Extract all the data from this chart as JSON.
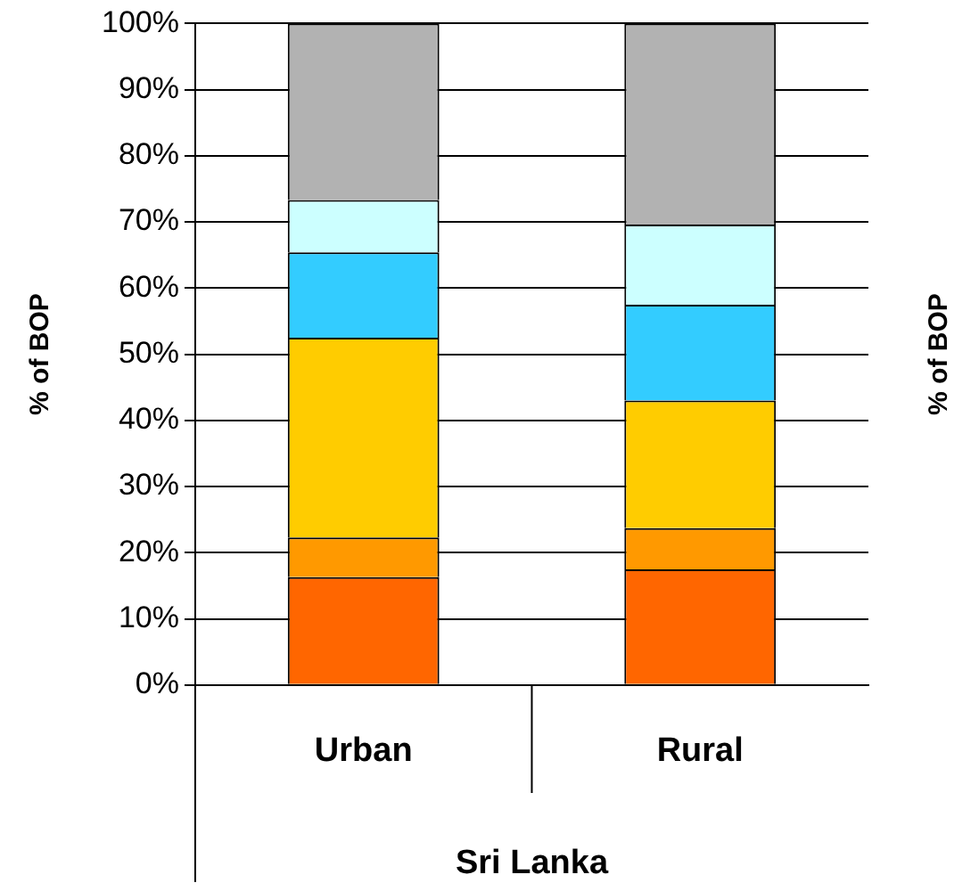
{
  "chart_data": {
    "type": "bar",
    "stacked": true,
    "xlabel": "Sri Lanka",
    "ylabel": "% of BOP",
    "categories": [
      "Urban",
      "Rural"
    ],
    "series": [
      {
        "color": "#ff6600",
        "values": [
          16.3,
          17.5
        ]
      },
      {
        "color": "#ff9900",
        "values": [
          6.0,
          6.2
        ]
      },
      {
        "color": "#ffcc00",
        "values": [
          30.2,
          19.3
        ]
      },
      {
        "color": "#33ccff",
        "values": [
          12.9,
          14.5
        ]
      },
      {
        "color": "#ccffff",
        "values": [
          7.9,
          12.1
        ]
      },
      {
        "color": "#b2b2b2",
        "values": [
          26.7,
          30.4
        ]
      }
    ],
    "ylim": [
      0,
      100
    ],
    "yticks": [
      {
        "value": 0,
        "label": "0%"
      },
      {
        "value": 10,
        "label": "10%"
      },
      {
        "value": 20,
        "label": "20%"
      },
      {
        "value": 30,
        "label": "30%"
      },
      {
        "value": 40,
        "label": "40%"
      },
      {
        "value": 50,
        "label": "50%"
      },
      {
        "value": 60,
        "label": "60%"
      },
      {
        "value": 70,
        "label": "70%"
      },
      {
        "value": 80,
        "label": "80%"
      },
      {
        "value": 90,
        "label": "90%"
      },
      {
        "value": 100,
        "label": "100%"
      }
    ],
    "grid": "y",
    "legend": false,
    "annotations": [
      "% of BOP"
    ]
  }
}
